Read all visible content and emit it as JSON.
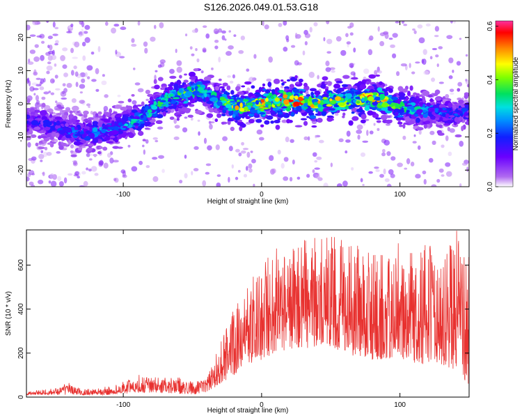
{
  "title": "S126.2026.049.01.53.G18",
  "chart_data": [
    {
      "type": "heatmap",
      "title": "S126.2026.049.01.53.G18",
      "xlabel": "Height of straight line (km)",
      "ylabel": "Frequency (Hz)",
      "xlim": [
        -170,
        150
      ],
      "ylim": [
        -25,
        25
      ],
      "xticks": [
        -100,
        0,
        100
      ],
      "yticks": [
        -20,
        -10,
        0,
        10,
        20
      ],
      "colorbar": {
        "label": "Normalized spectral amplitude",
        "range": [
          0.0,
          0.62
        ],
        "ticks": [
          0.0,
          0.2,
          0.4,
          0.6
        ],
        "colormap": "rainbow"
      },
      "ridge": {
        "x": [
          -170,
          -150,
          -130,
          -110,
          -90,
          -80,
          -70,
          -55,
          -45,
          -35,
          -25,
          -15,
          0,
          20,
          40,
          60,
          80,
          100,
          120,
          140,
          150
        ],
        "center_hz": [
          -5,
          -7,
          -9,
          -8,
          -5,
          -2,
          1,
          3,
          4,
          2,
          0,
          -1,
          0,
          1,
          0,
          1,
          2,
          -1,
          -2,
          -3,
          -2
        ],
        "intensity": [
          0.15,
          0.18,
          0.22,
          0.25,
          0.28,
          0.3,
          0.35,
          0.4,
          0.38,
          0.35,
          0.4,
          0.45,
          0.5,
          0.55,
          0.45,
          0.45,
          0.5,
          0.35,
          0.25,
          0.2,
          0.2
        ]
      }
    },
    {
      "type": "line",
      "xlabel": "Height of straight line (km)",
      "ylabel": "SNR (10 * v/v)",
      "xlim": [
        -170,
        150
      ],
      "ylim": [
        0,
        760
      ],
      "xticks": [
        -100,
        0,
        100
      ],
      "yticks": [
        0,
        200,
        400,
        600
      ],
      "color": "#e8312f",
      "envelope": {
        "x": [
          -170,
          -150,
          -140,
          -130,
          -120,
          -110,
          -100,
          -90,
          -80,
          -70,
          -60,
          -50,
          -40,
          -30,
          -20,
          -10,
          0,
          10,
          20,
          30,
          40,
          50,
          60,
          70,
          80,
          90,
          100,
          110,
          120,
          130,
          140,
          150
        ],
        "low": [
          10,
          10,
          10,
          10,
          10,
          10,
          15,
          20,
          20,
          20,
          15,
          10,
          20,
          60,
          100,
          150,
          170,
          200,
          220,
          220,
          220,
          230,
          200,
          180,
          170,
          170,
          180,
          150,
          150,
          150,
          120,
          50
        ],
        "high": [
          25,
          40,
          70,
          35,
          40,
          50,
          70,
          110,
          100,
          90,
          90,
          70,
          80,
          250,
          400,
          500,
          620,
          680,
          700,
          720,
          730,
          740,
          720,
          700,
          660,
          640,
          720,
          700,
          700,
          660,
          760,
          720
        ]
      }
    }
  ]
}
